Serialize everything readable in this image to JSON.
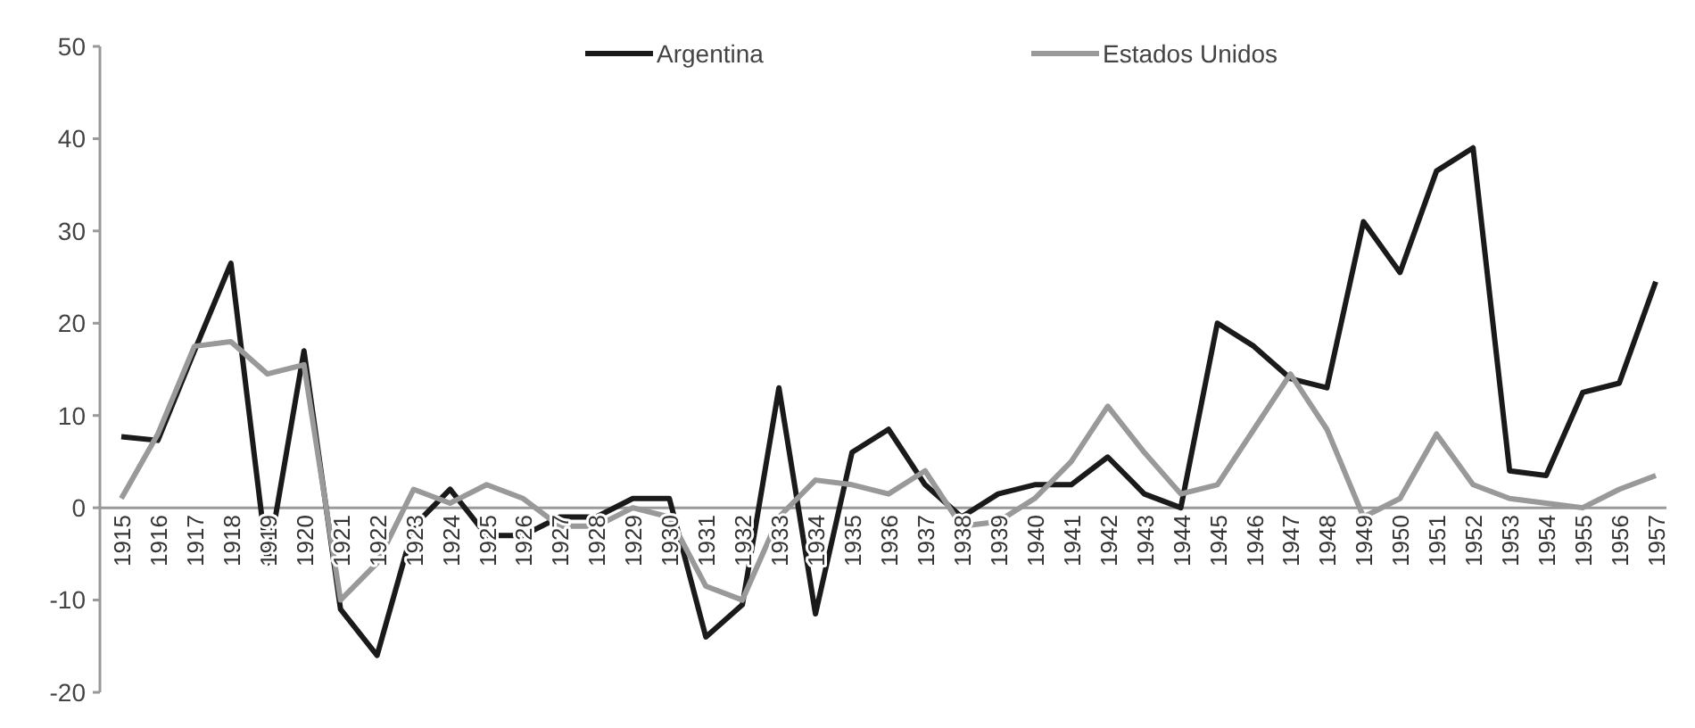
{
  "chart_data": {
    "type": "line",
    "categories": [
      "1915",
      "1916",
      "1917",
      "1918",
      "1919",
      "1920",
      "1921",
      "1922",
      "1923",
      "1924",
      "1925",
      "1926",
      "1927",
      "1928",
      "1929",
      "1930",
      "1931",
      "1932",
      "1933",
      "1934",
      "1935",
      "1936",
      "1937",
      "1938",
      "1939",
      "1940",
      "1941",
      "1942",
      "1943",
      "1944",
      "1945",
      "1946",
      "1947",
      "1948",
      "1949",
      "1950",
      "1951",
      "1952",
      "1953",
      "1954",
      "1955",
      "1956",
      "1957"
    ],
    "series": [
      {
        "name": "Argentina",
        "color": "#1a1a1a",
        "values": [
          7.7,
          7.3,
          17,
          26.5,
          -6,
          17,
          -11,
          -16,
          -2,
          2,
          -3,
          -3,
          -1,
          -1,
          1,
          1,
          -14,
          -10.5,
          13,
          -11.5,
          6,
          8.5,
          2.5,
          -1,
          1.5,
          2.5,
          2.5,
          5.5,
          1.5,
          0,
          20,
          17.5,
          14,
          13,
          31,
          25.5,
          36.5,
          39,
          4,
          3.5,
          12.5,
          13.5,
          24.5
        ]
      },
      {
        "name": "Estados Unidos",
        "color": "#999999",
        "values": [
          1,
          8,
          17.5,
          18,
          14.5,
          15.5,
          -10,
          -6,
          2,
          0.5,
          2.5,
          1,
          -2,
          -2,
          0,
          -1,
          -8.5,
          -10,
          -1,
          3,
          2.5,
          1.5,
          4,
          -2,
          -1.5,
          1,
          5,
          11,
          6,
          1.5,
          2.5,
          8.5,
          14.5,
          8.5,
          -1,
          1,
          8,
          2.5,
          1,
          0.5,
          0,
          2,
          3.5
        ]
      }
    ],
    "ylim": [
      -20,
      50
    ],
    "yticks": [
      -20,
      -10,
      0,
      10,
      20,
      30,
      40,
      50
    ],
    "legend": "top",
    "grid": false,
    "marker": "none",
    "line_style": "solid"
  }
}
